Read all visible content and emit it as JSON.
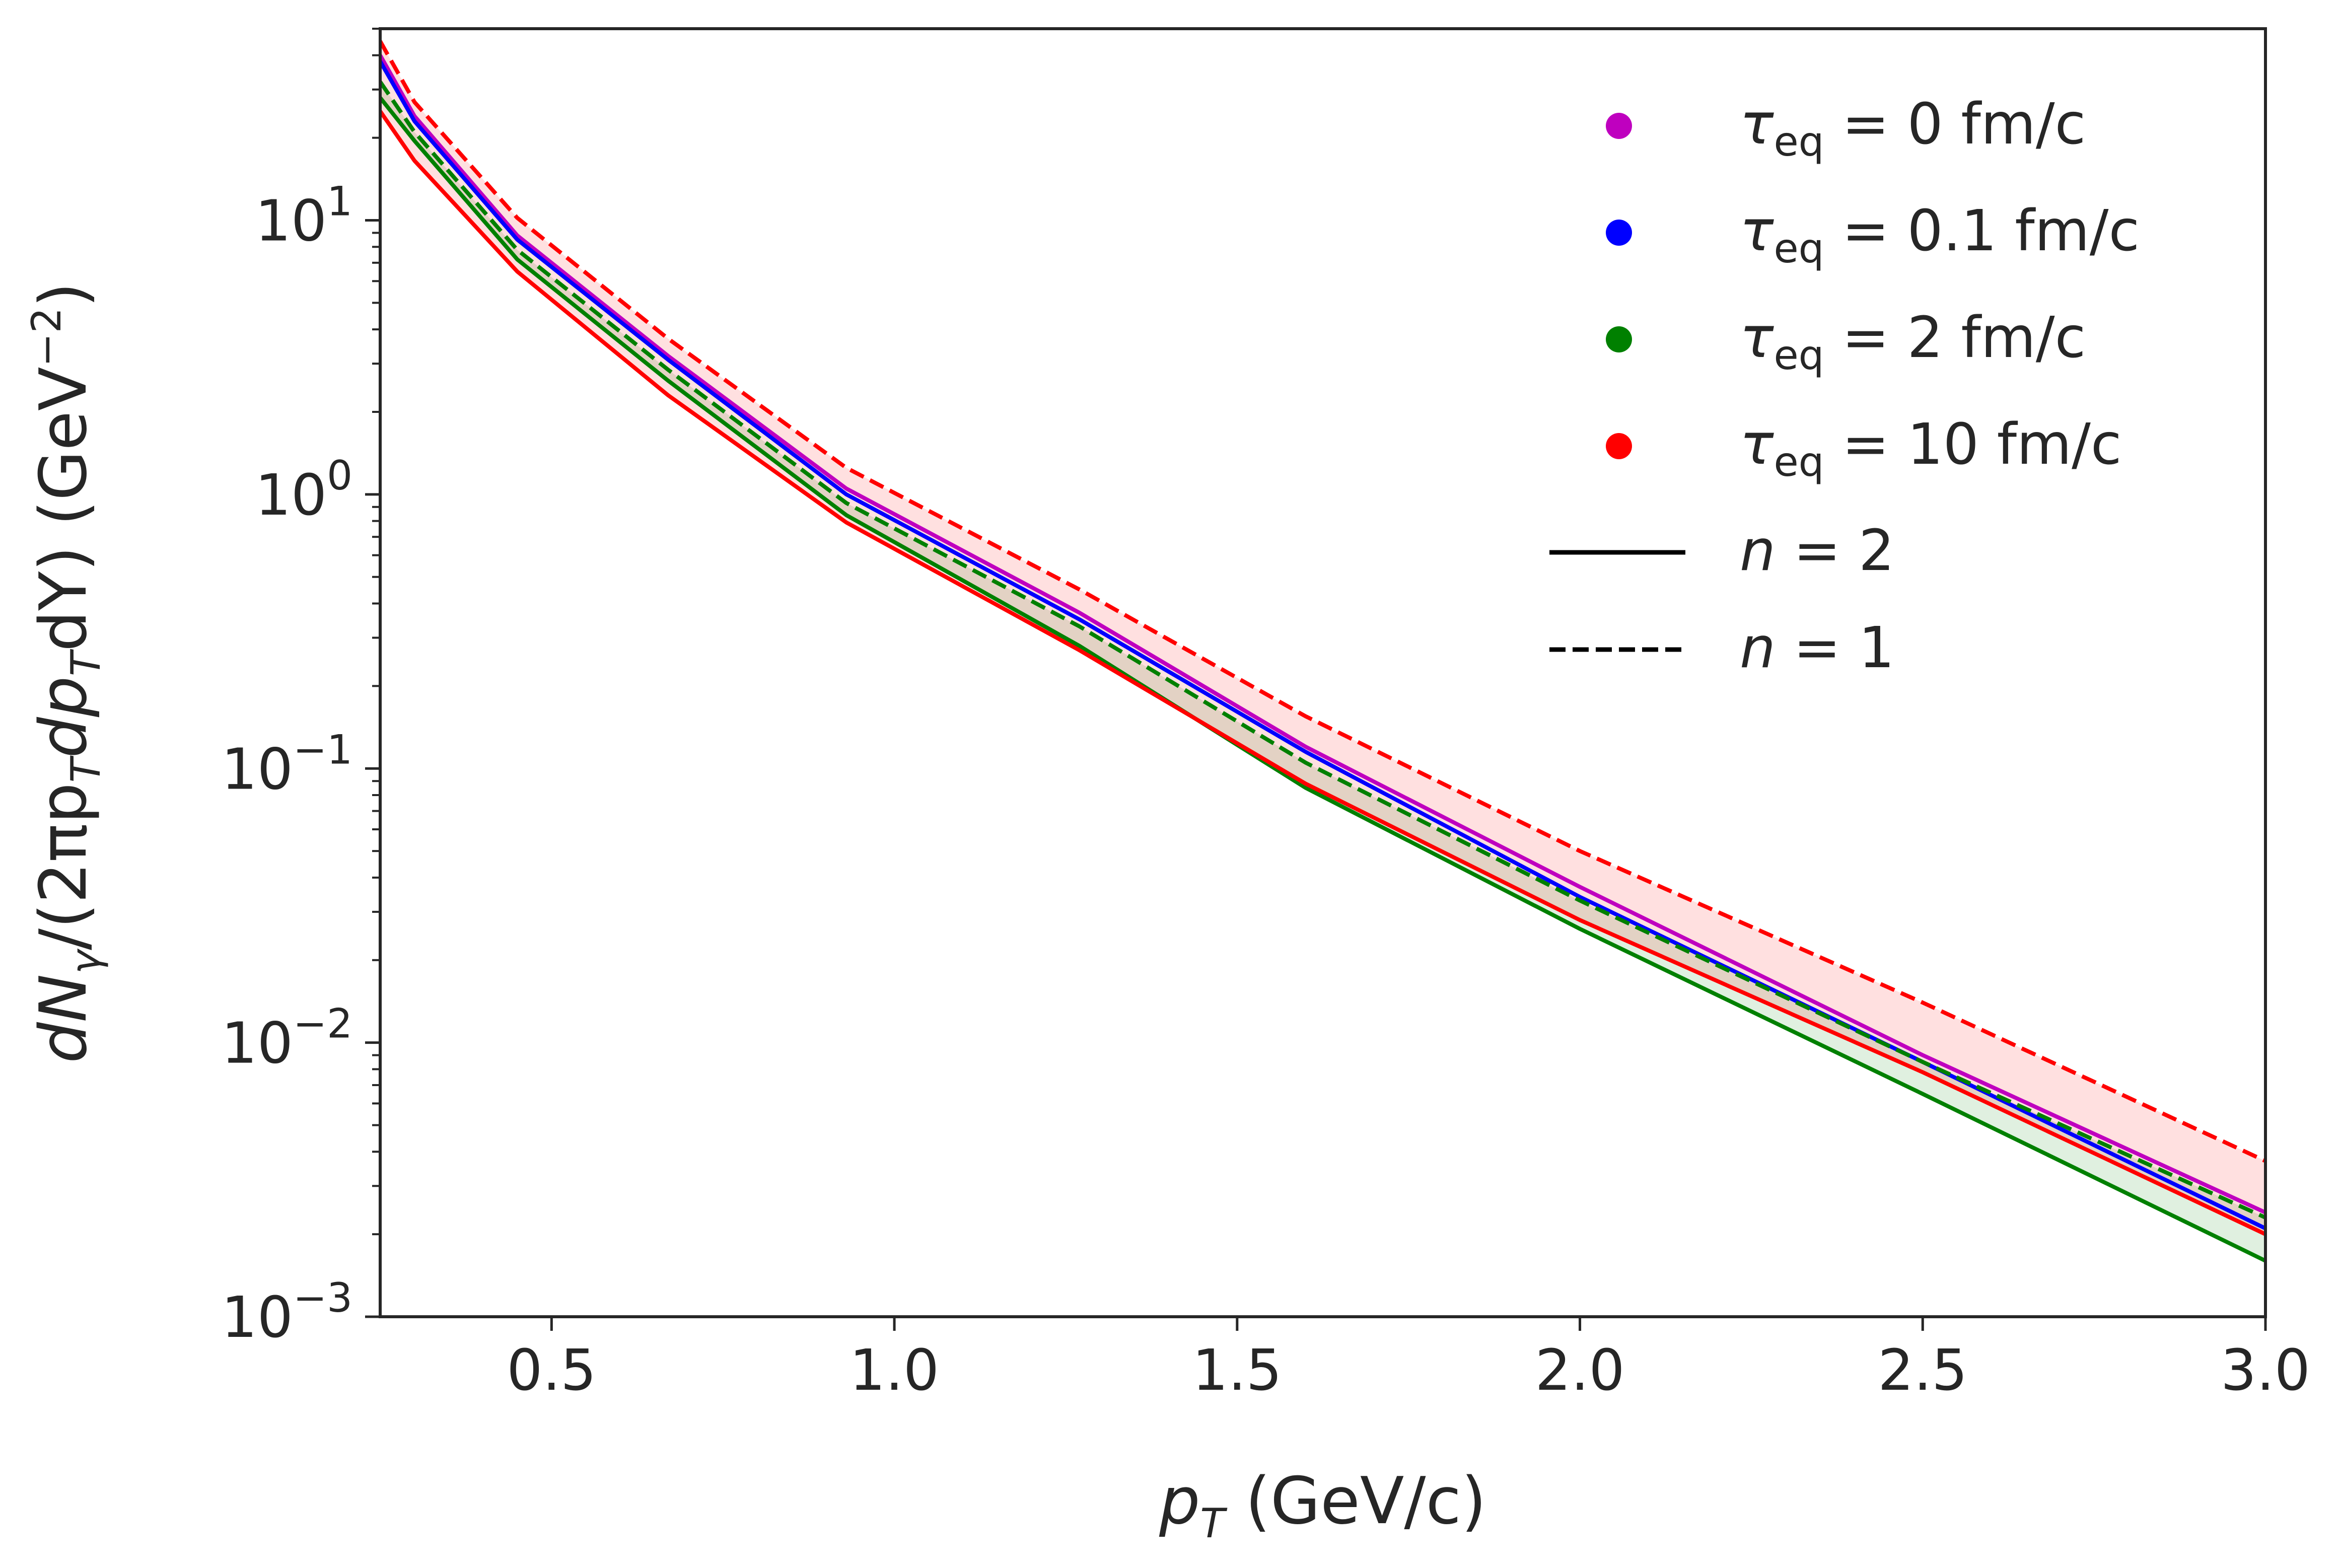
{
  "chart_data": {
    "type": "line",
    "x_axis": {
      "label_var": "p",
      "label_sub": "T",
      "label_unit": " (GeV/c)",
      "range": [
        0.25,
        3.0
      ],
      "ticks": [
        "0.5",
        "1.0",
        "1.5",
        "2.0",
        "2.5",
        "3.0"
      ],
      "tick_values": [
        0.5,
        1.0,
        1.5,
        2.0,
        2.5,
        3.0
      ]
    },
    "y_axis": {
      "scale": "log",
      "range": [
        0.001,
        50
      ],
      "label_parts": [
        "dN",
        "γ",
        "/(2πp",
        "T",
        "dp",
        "T",
        "dY) (GeV",
        "−2",
        ")"
      ],
      "ticks": [
        {
          "base": "10",
          "exp": "1",
          "value": 10
        },
        {
          "base": "10",
          "exp": "0",
          "value": 1
        },
        {
          "base": "10",
          "exp": "−1",
          "value": 0.1
        },
        {
          "base": "10",
          "exp": "−2",
          "value": 0.01
        },
        {
          "base": "10",
          "exp": "−3",
          "value": 0.001
        }
      ]
    },
    "x": [
      0.25,
      0.3,
      0.45,
      0.67,
      0.93,
      1.27,
      1.6,
      2.0,
      2.5,
      3.0
    ],
    "series": [
      {
        "name": "τeq = 0 fm/c, n = 2",
        "color": "#bf00bf",
        "dash": false,
        "values": [
          40,
          24,
          8.8,
          3.2,
          1.05,
          0.37,
          0.12,
          0.037,
          0.009,
          0.0024
        ]
      },
      {
        "name": "τeq = 0.1 fm/c, n = 2",
        "color": "#0000ff",
        "dash": false,
        "values": [
          38,
          23,
          8.5,
          3.1,
          1.0,
          0.35,
          0.115,
          0.034,
          0.0085,
          0.0021
        ]
      },
      {
        "name": "τeq = 2 fm/c, n = 2",
        "color": "#008000",
        "dash": false,
        "values": [
          28,
          19.5,
          7.2,
          2.6,
          0.84,
          0.28,
          0.085,
          0.026,
          0.0065,
          0.0016
        ]
      },
      {
        "name": "τeq = 10 fm/c, n = 2",
        "color": "#ff0000",
        "dash": false,
        "values": [
          25,
          16.5,
          6.5,
          2.3,
          0.79,
          0.27,
          0.088,
          0.028,
          0.0078,
          0.002
        ]
      },
      {
        "name": "τeq = 2 fm/c, n = 1",
        "color": "#008000",
        "dash": true,
        "values": [
          32,
          21,
          7.8,
          2.85,
          0.93,
          0.33,
          0.105,
          0.033,
          0.0085,
          0.0023
        ]
      },
      {
        "name": "τeq = 10 fm/c, n = 1",
        "color": "#ff0000",
        "dash": true,
        "values": [
          45,
          27,
          10.2,
          3.7,
          1.25,
          0.45,
          0.155,
          0.05,
          0.014,
          0.0037
        ]
      }
    ],
    "bands": [
      {
        "name": "τeq = 2 fm/c band",
        "color": "#008000",
        "opacity": 0.12,
        "lower": [
          28,
          19.5,
          7.2,
          2.6,
          0.84,
          0.28,
          0.085,
          0.026,
          0.0065,
          0.0016
        ],
        "upper": [
          32,
          21,
          7.8,
          2.85,
          0.93,
          0.33,
          0.105,
          0.033,
          0.0085,
          0.0023
        ]
      },
      {
        "name": "τeq = 10 fm/c band",
        "color": "#ff0000",
        "opacity": 0.12,
        "lower": [
          25,
          16.5,
          6.5,
          2.3,
          0.79,
          0.27,
          0.088,
          0.028,
          0.0078,
          0.002
        ],
        "upper": [
          45,
          27,
          10.2,
          3.7,
          1.25,
          0.45,
          0.155,
          0.05,
          0.014,
          0.0037
        ]
      }
    ],
    "legend": {
      "placement": "top-right",
      "markers": [
        {
          "var": "τ",
          "sub": "eq",
          "text": " = 0 fm/c",
          "color": "#bf00bf"
        },
        {
          "var": "τ",
          "sub": "eq",
          "text": " = 0.1 fm/c",
          "color": "#0000ff"
        },
        {
          "var": "τ",
          "sub": "eq",
          "text": " = 2 fm/c",
          "color": "#008000"
        },
        {
          "var": "τ",
          "sub": "eq",
          "text": " = 10 fm/c",
          "color": "#ff0000"
        }
      ],
      "lines": [
        {
          "var": "n",
          "text": " = 2",
          "dash": false
        },
        {
          "var": "n",
          "text": " = 1",
          "dash": true
        }
      ]
    }
  }
}
